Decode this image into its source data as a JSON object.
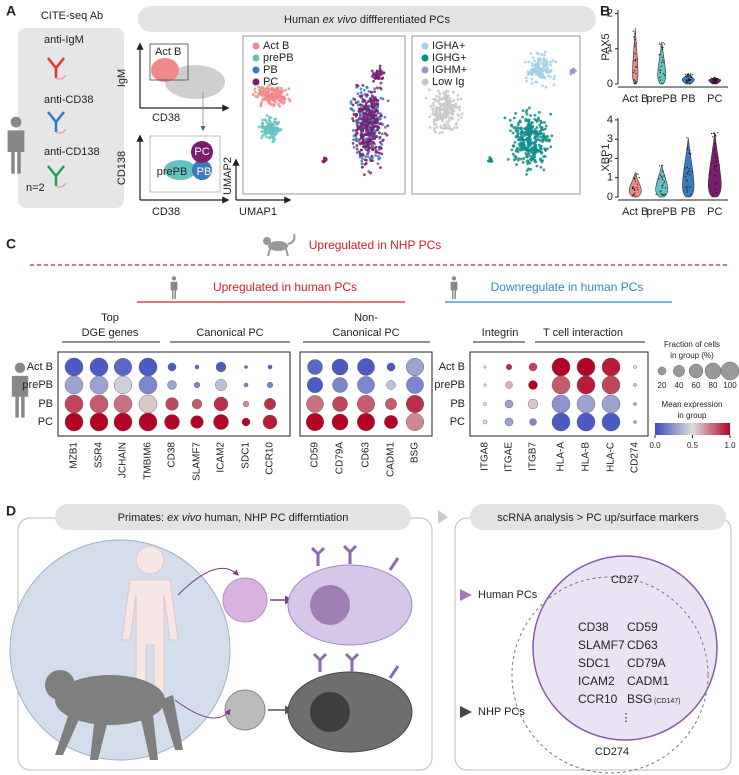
{
  "panel_a": {
    "letter": "A",
    "ab_title": "CITE-seq Ab",
    "antibodies": [
      "anti-IgM",
      "anti-CD38",
      "anti-CD138"
    ],
    "donors": "n=2",
    "banner": [
      "Human ",
      "ex vivo",
      " diffferentiated PCs"
    ],
    "gate1": {
      "y_label": "IgM",
      "x_label": "CD38",
      "gate": "Act B"
    },
    "gate2": {
      "y_label": "CD138",
      "x_label": "CD38",
      "gates": [
        "PC",
        "prePB",
        "PB"
      ]
    },
    "umap": {
      "x_label": "UMAP1",
      "y_label": "UMAP2"
    },
    "legend1": [
      {
        "name": "Act B",
        "color": "#f08a8a"
      },
      {
        "name": "prePB",
        "color": "#66c2c2"
      },
      {
        "name": "PB",
        "color": "#3b7bbd"
      },
      {
        "name": "PC",
        "color": "#7b1d6f"
      }
    ],
    "legend2": [
      {
        "name": "IGHA+",
        "color": "#9fd0ea"
      },
      {
        "name": "IGHG+",
        "color": "#108c8c"
      },
      {
        "name": "IGHM+",
        "color": "#a58ccf"
      },
      {
        "name": "Low Ig",
        "color": "#c8c8c8"
      }
    ]
  },
  "panel_b": {
    "letter": "B",
    "categories": [
      "Act B",
      "prePB",
      "PB",
      "PC"
    ],
    "plots": [
      {
        "gene": "PAX5",
        "ylim": [
          0,
          2.1
        ],
        "yticks": [
          0,
          1,
          2
        ]
      },
      {
        "gene": "XBP1",
        "ylim": [
          0,
          4.1
        ],
        "yticks": [
          0,
          1,
          2,
          3,
          4
        ]
      }
    ]
  },
  "panel_c": {
    "letter": "C",
    "nhp_header": "Upregulated in NHP PCs",
    "up_header": "Upregulated in human PCs",
    "down_header": "Downregulate in human PCs",
    "rows": [
      "Act B",
      "prePB",
      "PB",
      "PC"
    ],
    "groups": [
      {
        "title": [
          "Top",
          "DGE genes"
        ],
        "genes": [
          {
            "name": "MZB1",
            "fraction": [
              100,
              100,
              100,
              100
            ],
            "expression": [
              0.05,
              0.3,
              0.85,
              1.0
            ]
          },
          {
            "name": "SSR4",
            "fraction": [
              100,
              100,
              100,
              100
            ],
            "expression": [
              0.05,
              0.3,
              0.8,
              1.0
            ]
          },
          {
            "name": "JCHAIN",
            "fraction": [
              95,
              95,
              100,
              100
            ],
            "expression": [
              0.1,
              0.45,
              0.75,
              1.0
            ]
          },
          {
            "name": "TMBIM6",
            "fraction": [
              100,
              100,
              100,
              100
            ],
            "expression": [
              0.05,
              0.2,
              0.55,
              1.0
            ]
          }
        ]
      },
      {
        "title": [
          "Canonical PC"
        ],
        "genes": [
          {
            "name": "CD38",
            "fraction": [
              20,
              25,
              50,
              70
            ],
            "expression": [
              0.05,
              0.3,
              0.85,
              1.0
            ]
          },
          {
            "name": "SLAMF7",
            "fraction": [
              5,
              10,
              30,
              50
            ],
            "expression": [
              0.1,
              0.2,
              0.8,
              1.0
            ]
          },
          {
            "name": "ICAM2",
            "fraction": [
              30,
              40,
              60,
              70
            ],
            "expression": [
              0.05,
              0.4,
              0.9,
              1.0
            ]
          },
          {
            "name": "SDC1",
            "fraction": [
              3,
              5,
              10,
              20
            ],
            "expression": [
              0.1,
              0.2,
              0.7,
              1.0
            ]
          },
          {
            "name": "CCR10",
            "fraction": [
              5,
              10,
              40,
              60
            ],
            "expression": [
              0.1,
              0.2,
              0.9,
              0.95
            ]
          }
        ]
      },
      {
        "title": [
          "Non-",
          "Canonical PC"
        ],
        "genes": [
          {
            "name": "CD59",
            "fraction": [
              70,
              75,
              90,
              95
            ],
            "expression": [
              0.1,
              0.05,
              0.75,
              1.0
            ]
          },
          {
            "name": "CD79A",
            "fraction": [
              80,
              70,
              70,
              80
            ],
            "expression": [
              0.05,
              0.2,
              0.85,
              1.0
            ]
          },
          {
            "name": "CD63",
            "fraction": [
              90,
              90,
              95,
              95
            ],
            "expression": [
              0.05,
              0.2,
              0.8,
              1.0
            ]
          },
          {
            "name": "CADM1",
            "fraction": [
              20,
              25,
              40,
              55
            ],
            "expression": [
              0.05,
              0.4,
              0.8,
              1.0
            ]
          },
          {
            "name": "BSG",
            "fraction": [
              95,
              90,
              95,
              95
            ],
            "expression": [
              0.3,
              0.2,
              0.9,
              0.7
            ]
          }
        ]
      },
      {
        "title": [
          "Integrin"
        ],
        "genes": [
          {
            "name": "ITGA8",
            "fraction": [
              2,
              2,
              3,
              5
            ],
            "expression": [
              0.5,
              0.5,
              0.5,
              0.5
            ]
          },
          {
            "name": "ITGAE",
            "fraction": [
              10,
              15,
              20,
              20
            ],
            "expression": [
              0.9,
              0.6,
              0.3,
              0.3
            ]
          },
          {
            "name": "ITGB7",
            "fraction": [
              20,
              25,
              30,
              15
            ],
            "expression": [
              0.85,
              1.0,
              0.55,
              0.2
            ]
          }
        ]
      },
      {
        "title": [
          "T cell interaction"
        ],
        "genes": [
          {
            "name": "HLA-A",
            "fraction": [
              100,
              100,
              100,
              100
            ],
            "expression": [
              1.0,
              0.8,
              0.25,
              0.05
            ]
          },
          {
            "name": "HLA-B",
            "fraction": [
              100,
              100,
              100,
              100
            ],
            "expression": [
              1.0,
              0.95,
              0.3,
              0.05
            ]
          },
          {
            "name": "HLA-C",
            "fraction": [
              100,
              100,
              100,
              100
            ],
            "expression": [
              0.95,
              0.85,
              0.3,
              0.05
            ]
          },
          {
            "name": "CD274",
            "fraction": [
              3,
              3,
              3,
              3
            ],
            "expression": [
              0.5,
              0.4,
              0.3,
              0.3
            ]
          }
        ]
      }
    ],
    "fraction_legend": {
      "title": [
        "Fraction of cells",
        "in group (%)"
      ],
      "ticks": [
        20,
        40,
        60,
        80,
        100
      ]
    },
    "color_legend": {
      "title": [
        "Mean expression",
        "in group"
      ],
      "clim": [
        0,
        1
      ],
      "ticks": [
        {
          "value": 0,
          "label": "0.0"
        },
        {
          "value": 0.5,
          "label": "0.5"
        },
        {
          "value": 1,
          "label": "1.0"
        }
      ]
    }
  },
  "panel_d": {
    "letter": "D",
    "left_banner": [
      "Primates: ",
      "ex vivo",
      " human, NHP PC differntiation"
    ],
    "right_banner": "scRNA analysis > PC up/surface markers",
    "human_label": "Human PCs",
    "nhp_label": "NHP PCs",
    "venn": {
      "outer": "CD27",
      "left_markers": [
        "CD38",
        "SLAMF7",
        "SDC1",
        "ICAM2",
        "CCR10"
      ],
      "right_markers": [
        "CD59",
        "CD63",
        "CD79A",
        "CADM1",
        "BSG"
      ],
      "bsg_note": "(CD147)",
      "more": "⋮",
      "nhp_only": "CD274"
    }
  }
}
